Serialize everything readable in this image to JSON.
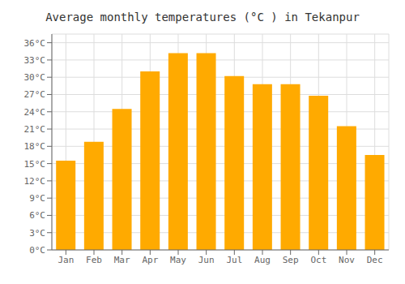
{
  "chart_data": {
    "type": "bar",
    "title": "Average monthly temperatures (°C ) in Tekanpur",
    "categories": [
      "Jan",
      "Feb",
      "Mar",
      "Apr",
      "May",
      "Jun",
      "Jul",
      "Aug",
      "Sep",
      "Oct",
      "Nov",
      "Dec"
    ],
    "values": [
      15.5,
      18.8,
      24.5,
      31.0,
      34.2,
      34.2,
      30.2,
      28.8,
      28.8,
      26.8,
      21.5,
      16.5
    ],
    "color": "#FFAA00",
    "ylim": [
      0,
      37.5
    ],
    "yticks": [
      {
        "value": 0,
        "label": "0°C"
      },
      {
        "value": 3,
        "label": "3°C"
      },
      {
        "value": 6,
        "label": "6°C"
      },
      {
        "value": 9,
        "label": "9°C"
      },
      {
        "value": 12,
        "label": "12°C"
      },
      {
        "value": 15,
        "label": "15°C"
      },
      {
        "value": 18,
        "label": "18°C"
      },
      {
        "value": 21,
        "label": "21°C"
      },
      {
        "value": 24,
        "label": "24°C"
      },
      {
        "value": 27,
        "label": "27°C"
      },
      {
        "value": 30,
        "label": "30°C"
      },
      {
        "value": 33,
        "label": "33°C"
      },
      {
        "value": 36,
        "label": "36°C"
      }
    ],
    "grid": true
  }
}
